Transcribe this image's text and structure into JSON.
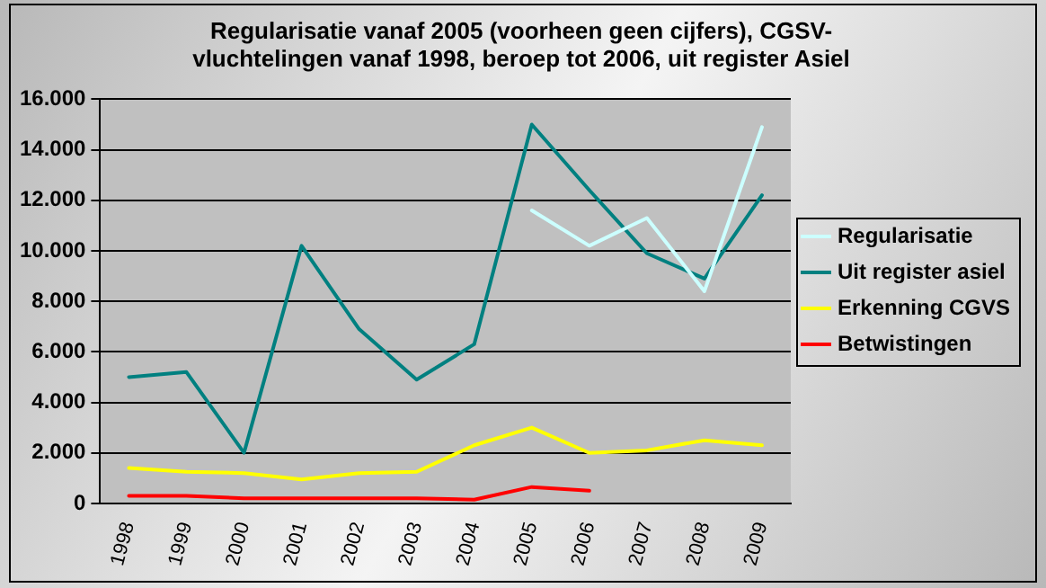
{
  "chart_data": {
    "type": "line",
    "title": "Regularisatie vanaf 2005 (voorheen geen cijfers), CGSV-vluchtelingen vanaf 1998, beroep tot 2006, uit register Asiel",
    "categories": [
      "1998",
      "1999",
      "2000",
      "2001",
      "2002",
      "2003",
      "2004",
      "2005",
      "2006",
      "2007",
      "2008",
      "2009"
    ],
    "series": [
      {
        "name": "Regularisatie",
        "color": "#ccffff",
        "values": [
          null,
          null,
          null,
          null,
          null,
          null,
          null,
          11600,
          10200,
          11300,
          8400,
          14900
        ]
      },
      {
        "name": "Uit register asiel",
        "color": "#008080",
        "values": [
          5000,
          5200,
          2000,
          10200,
          6900,
          4900,
          6300,
          15000,
          12400,
          9900,
          8900,
          12200
        ]
      },
      {
        "name": "Erkenning CGVS",
        "color": "#ffff00",
        "values": [
          1400,
          1250,
          1200,
          950,
          1200,
          1250,
          2300,
          3000,
          2000,
          2100,
          2500,
          2300
        ]
      },
      {
        "name": "Betwistingen",
        "color": "#ff0000",
        "values": [
          300,
          300,
          200,
          200,
          200,
          200,
          150,
          650,
          500,
          null,
          null,
          null
        ]
      }
    ],
    "ylim": [
      0,
      16000
    ],
    "yticks": [
      {
        "value": 0,
        "label": "0"
      },
      {
        "value": 2000,
        "label": "2.000"
      },
      {
        "value": 4000,
        "label": "4.000"
      },
      {
        "value": 6000,
        "label": "6.000"
      },
      {
        "value": 8000,
        "label": "8.000"
      },
      {
        "value": 10000,
        "label": "10.000"
      },
      {
        "value": 12000,
        "label": "12.000"
      },
      {
        "value": 14000,
        "label": "14.000"
      },
      {
        "value": 16000,
        "label": "16.000"
      }
    ],
    "grid": "y",
    "legend": "right",
    "marker": "none",
    "line_style": "solid"
  }
}
